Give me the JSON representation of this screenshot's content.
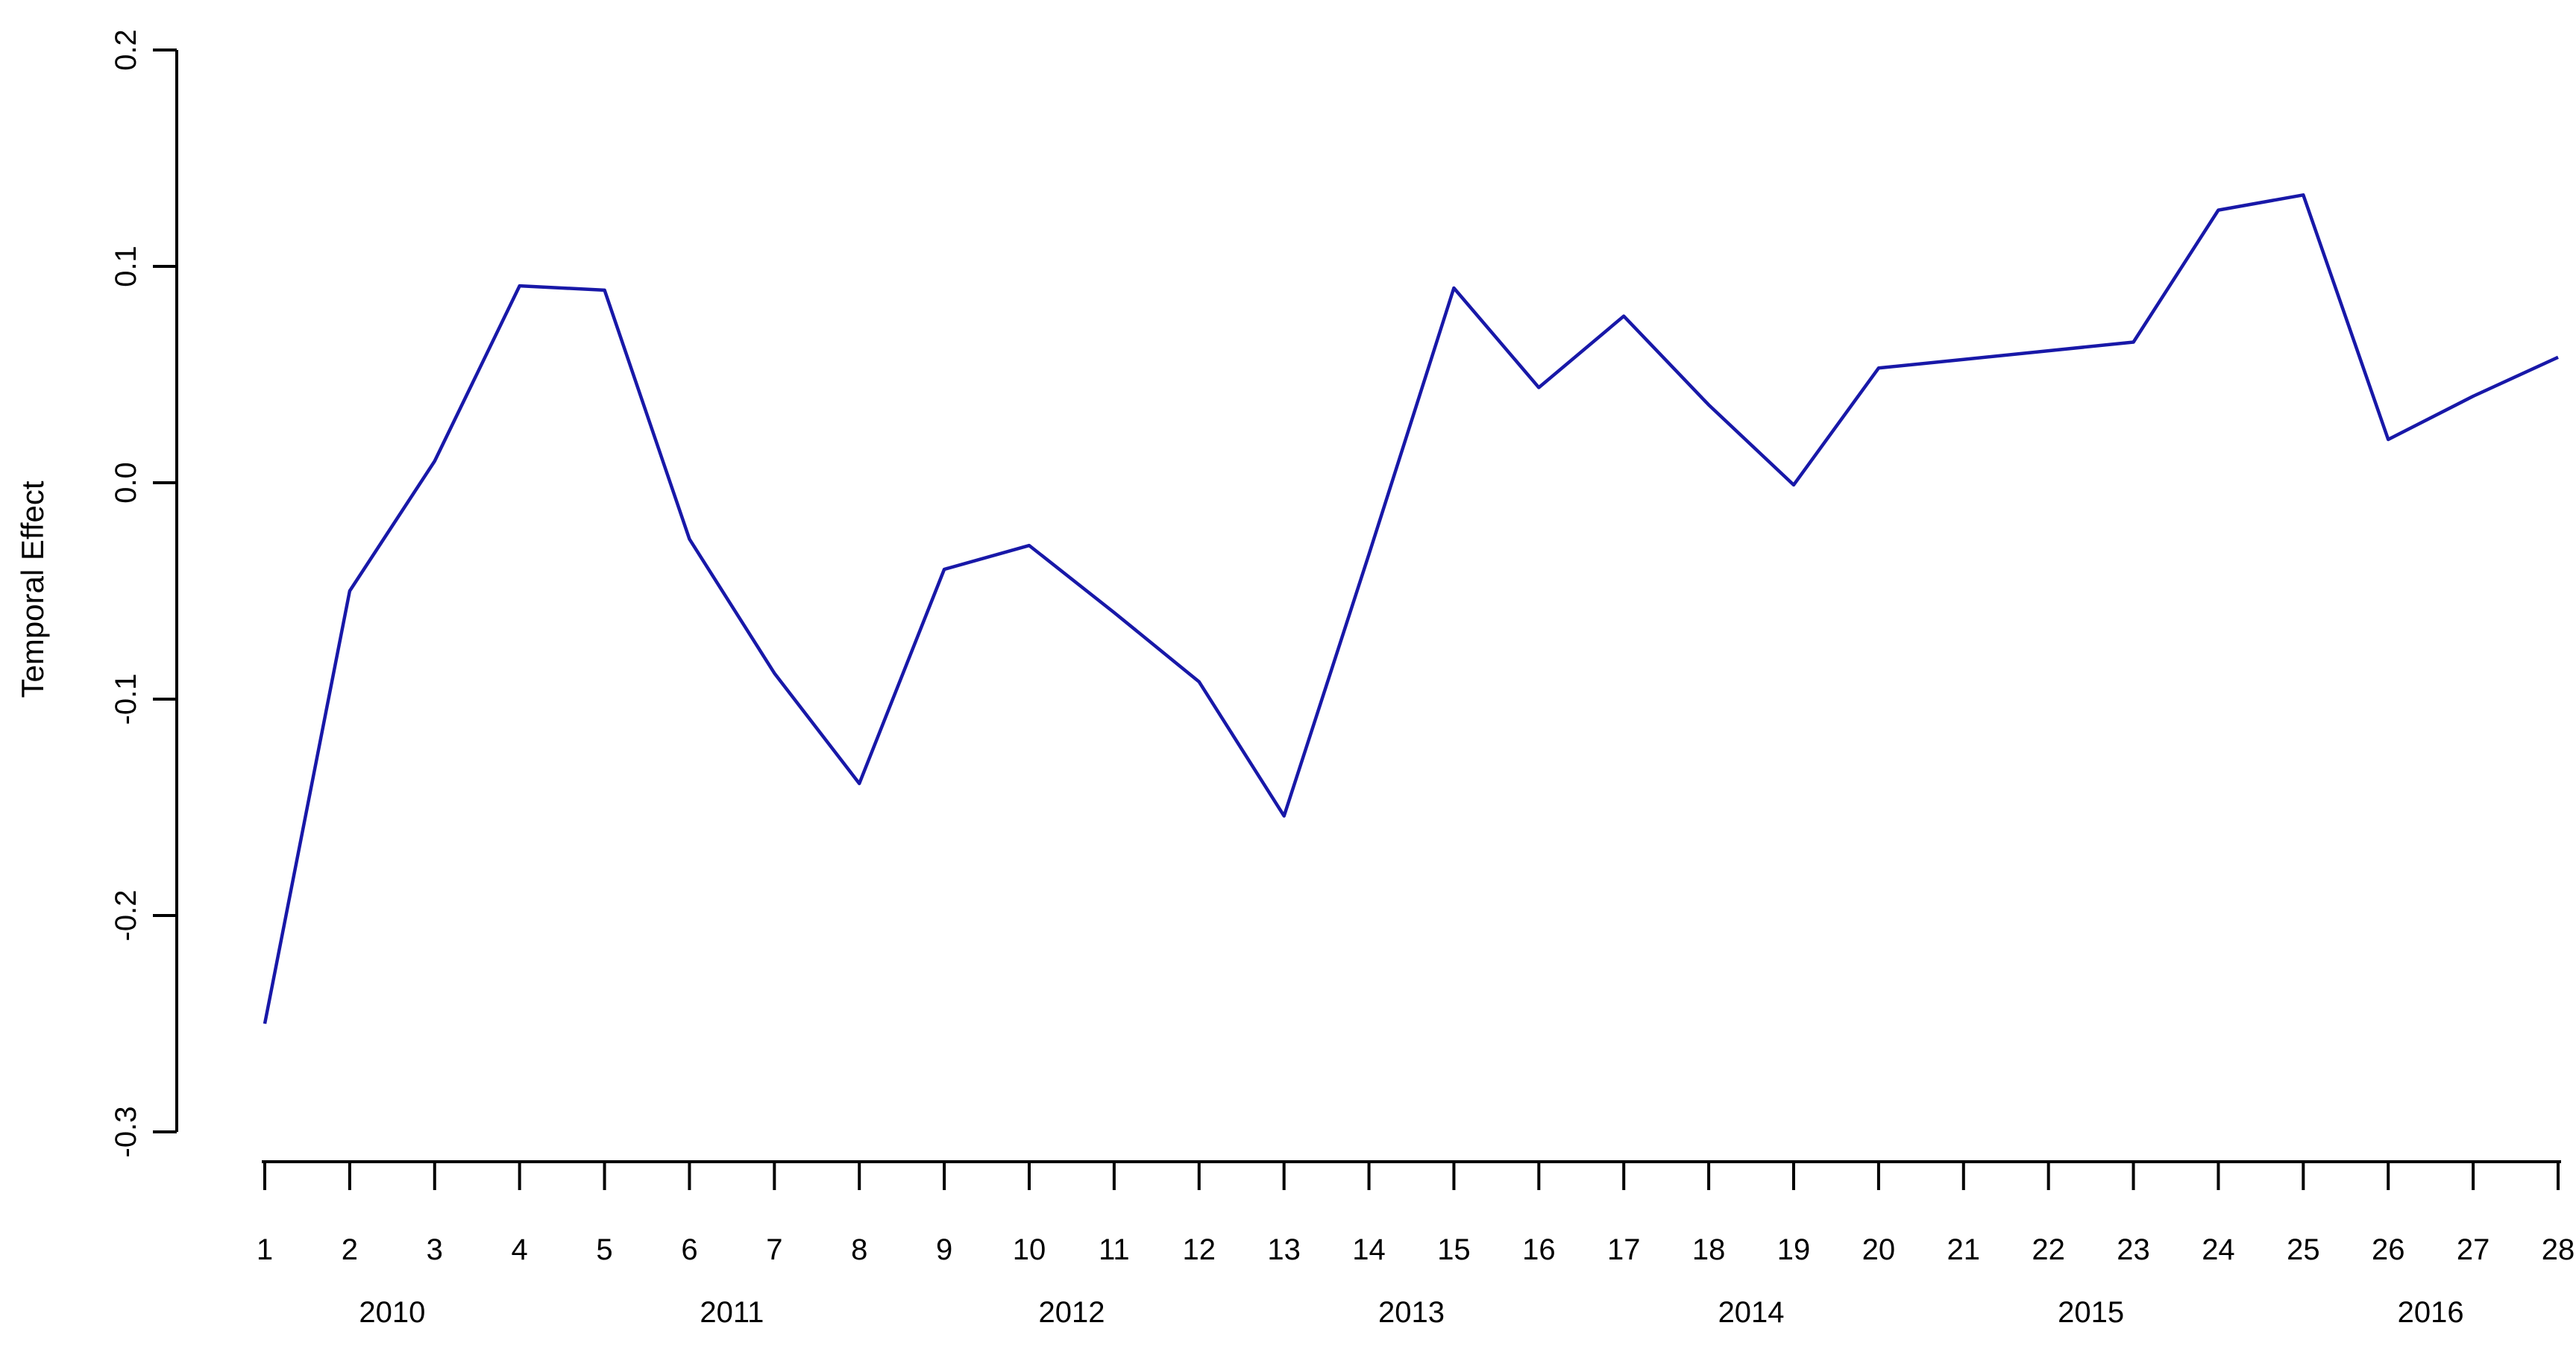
{
  "background_color": "#ffffff",
  "chart_data": {
    "type": "line",
    "title": "",
    "xlabel": "",
    "ylabel": "Temporal Effect",
    "x": [
      1,
      2,
      3,
      4,
      5,
      6,
      7,
      8,
      9,
      10,
      11,
      12,
      13,
      14,
      15,
      16,
      17,
      18,
      19,
      20,
      21,
      22,
      23,
      24,
      25,
      26,
      27,
      28
    ],
    "values": [
      -0.25,
      -0.05,
      0.01,
      0.091,
      0.089,
      -0.026,
      -0.088,
      -0.139,
      -0.04,
      -0.029,
      -0.06,
      -0.092,
      -0.154,
      -0.033,
      0.09,
      0.044,
      0.077,
      0.036,
      -0.001,
      0.053,
      0.057,
      0.061,
      0.065,
      0.126,
      0.133,
      0.02,
      0.04,
      0.058
    ],
    "series_name": "Temporal Effect",
    "line_color": "#1818a8",
    "axis_color": "#000000",
    "xlim": [
      1,
      28
    ],
    "ylim": [
      -0.3,
      0.2
    ],
    "grid": false,
    "legend": "none",
    "x_tick_labels": [
      "1",
      "2",
      "3",
      "4",
      "5",
      "6",
      "7",
      "8",
      "9",
      "10",
      "11",
      "12",
      "13",
      "14",
      "15",
      "16",
      "17",
      "18",
      "19",
      "20",
      "21",
      "22",
      "23",
      "24",
      "25",
      "26",
      "27",
      "28"
    ],
    "y_ticks": [
      {
        "value": 0.2,
        "label": "0.2"
      },
      {
        "value": 0.1,
        "label": "0.1"
      },
      {
        "value": 0.0,
        "label": "0.0"
      },
      {
        "value": -0.1,
        "label": "-0.1"
      },
      {
        "value": -0.2,
        "label": "-0.2"
      },
      {
        "value": -0.3,
        "label": "-0.3"
      }
    ],
    "year_labels": [
      {
        "label": "2010",
        "at": 2.5
      },
      {
        "label": "2011",
        "at": 6.5
      },
      {
        "label": "2012",
        "at": 10.5
      },
      {
        "label": "2013",
        "at": 14.5
      },
      {
        "label": "2014",
        "at": 18.5
      },
      {
        "label": "2015",
        "at": 22.5
      },
      {
        "label": "2016",
        "at": 26.5
      }
    ]
  }
}
